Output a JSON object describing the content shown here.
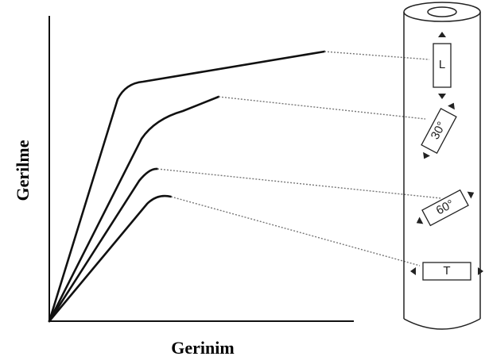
{
  "axis_labels": {
    "y": "Gerilme",
    "x": "Gerinim"
  },
  "specimens": [
    {
      "label": "L"
    },
    {
      "label": "30°"
    },
    {
      "label": "60°"
    },
    {
      "label": "T"
    }
  ]
}
